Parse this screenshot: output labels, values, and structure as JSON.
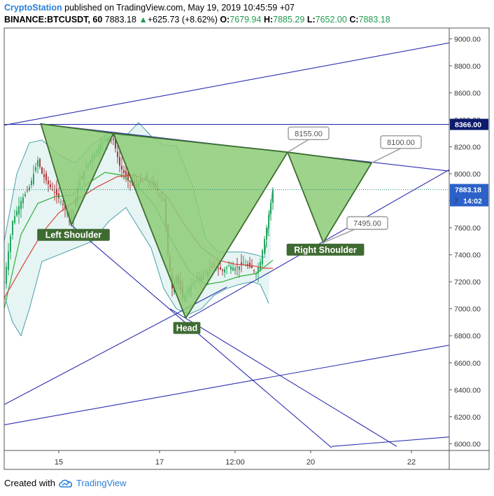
{
  "header": {
    "author": "CryptoStation",
    "published_text": "published on TradingView.com, May 19, 2019 10:45:59 +07",
    "symbol": "BINANCE:BTCUSDT, 60",
    "last": "7883.18",
    "change_arrow": "▲",
    "change": "+625.73 (+8.62%)",
    "o_label": "O:",
    "o_value": "7679.94",
    "h_label": "H:",
    "h_value": "7885.29",
    "l_label": "L:",
    "l_value": "7652.00",
    "c_label": "C:",
    "c_value": "7883.18"
  },
  "footer": {
    "created_with": "Created with",
    "brand": "TradingView",
    "logo_icon": "tradingview-cloud-icon"
  },
  "colors": {
    "pattern_fill": "#8dcb77",
    "pattern_stroke": "#3d6e2f",
    "trendline": "#2b2fb0",
    "bb_fill": "#e6f4f4",
    "bb_stroke": "#4aa0a8",
    "sma_red": "#d9443a",
    "sma_green": "#31b032",
    "candle_up": "#27a65f",
    "candle_down": "#b0393c",
    "author": "#2a7fd6",
    "last_price_badge": "#2b61c9",
    "resistance_badge": "#0d1b6e"
  },
  "chart_data": {
    "type": "candlestick",
    "title": "BINANCE:BTCUSDT, 60",
    "ylim": [
      5950,
      9080
    ],
    "y_ticks": [
      "6000.00",
      "6200.00",
      "6400.00",
      "6600.00",
      "6800.00",
      "7000.00",
      "7200.00",
      "7400.00",
      "7600.00",
      "7800.00",
      "8000.00",
      "8200.00",
      "8400.00",
      "8600.00",
      "8800.00",
      "9000.00"
    ],
    "x_tick_labels": [
      {
        "label": "15",
        "hour": 24
      },
      {
        "label": "17",
        "hour": 72
      },
      {
        "label": "12:00",
        "hour": 108
      },
      {
        "label": "20",
        "hour": 144
      },
      {
        "label": "22",
        "hour": 192
      }
    ],
    "x_range_hours": [
      -2,
      210
    ],
    "price_badges": {
      "resistance": "8366.00",
      "last_price": "7883.18",
      "countdown": "14:02"
    },
    "price_axis_partial_label": "7",
    "pattern": {
      "name": "inverse head and shoulders",
      "points": [
        {
          "hour": 15.5,
          "price": 8370
        },
        {
          "hour": 30,
          "price": 7620
        },
        {
          "hour": 50,
          "price": 8300
        },
        {
          "hour": 84.5,
          "price": 6930
        },
        {
          "hour": 133,
          "price": 8160
        },
        {
          "hour": 150,
          "price": 7490
        },
        {
          "hour": 173,
          "price": 8080
        }
      ],
      "labels": [
        {
          "text": "Left Shoulder",
          "hour": 31,
          "price": 7545
        },
        {
          "text": "Head",
          "hour": 85,
          "price": 6855
        },
        {
          "text": "Right Shoulder",
          "hour": 151,
          "price": 7435
        }
      ],
      "target_callouts": [
        {
          "text": "8155.00",
          "hour": 143,
          "price": 8300
        },
        {
          "text": "8100.00",
          "hour": 187,
          "price": 8235
        },
        {
          "text": "7495.00",
          "hour": 171,
          "price": 7635
        }
      ]
    },
    "trendlines": [
      {
        "p1": [
          -2,
          8360
        ],
        "p2": [
          210,
          8970
        ]
      },
      {
        "p1": [
          -2,
          8366
        ],
        "p2": [
          210,
          8366
        ]
      },
      {
        "p1": [
          15,
          8370
        ],
        "p2": [
          210,
          8020
        ]
      },
      {
        "p1": [
          -2,
          6290
        ],
        "p2": [
          104,
          7160
        ]
      },
      {
        "p1": [
          86,
          6930
        ],
        "p2": [
          210,
          8030
        ]
      },
      {
        "p1": [
          30,
          7620
        ],
        "p2": [
          154,
          5970
        ]
      },
      {
        "p1": [
          77,
          7000
        ],
        "p2": [
          185,
          5980
        ]
      },
      {
        "p1": [
          -2,
          6140
        ],
        "p2": [
          210,
          6730
        ]
      },
      {
        "p1": [
          154,
          5980
        ],
        "p2": [
          210,
          6050
        ]
      }
    ],
    "series": [
      {
        "name": "",
        "kind": "price_path",
        "points": [
          [
            -2,
            7200
          ],
          [
            2,
            7650
          ],
          [
            6,
            7800
          ],
          [
            10,
            7900
          ],
          [
            14,
            8100
          ],
          [
            16,
            8000
          ],
          [
            20,
            7900
          ],
          [
            24,
            7820
          ],
          [
            28,
            7720
          ],
          [
            30,
            7650
          ],
          [
            33,
            7900
          ],
          [
            36,
            8020
          ],
          [
            40,
            8130
          ],
          [
            44,
            8220
          ],
          [
            48,
            8280
          ],
          [
            50,
            8250
          ],
          [
            53,
            8060
          ],
          [
            57,
            7950
          ],
          [
            61,
            7920
          ],
          [
            65,
            7960
          ],
          [
            70,
            7900
          ],
          [
            74,
            7800
          ],
          [
            76,
            7400
          ],
          [
            78,
            7150
          ],
          [
            80,
            7240
          ],
          [
            83,
            7080
          ],
          [
            86,
            7150
          ],
          [
            90,
            7220
          ],
          [
            94,
            7260
          ],
          [
            98,
            7320
          ],
          [
            102,
            7280
          ],
          [
            105,
            7320
          ],
          [
            108,
            7300
          ],
          [
            112,
            7330
          ],
          [
            116,
            7300
          ],
          [
            118,
            7260
          ],
          [
            120,
            7350
          ],
          [
            123,
            7600
          ],
          [
            126,
            7880
          ]
        ]
      },
      {
        "name": "",
        "kind": "sma_fast",
        "points": [
          [
            -2,
            7000
          ],
          [
            6,
            7550
          ],
          [
            14,
            7780
          ],
          [
            22,
            7830
          ],
          [
            30,
            7840
          ],
          [
            38,
            7930
          ],
          [
            46,
            8010
          ],
          [
            54,
            7990
          ],
          [
            62,
            7900
          ],
          [
            70,
            7760
          ],
          [
            78,
            7500
          ],
          [
            86,
            7280
          ],
          [
            94,
            7180
          ],
          [
            102,
            7200
          ],
          [
            110,
            7240
          ],
          [
            118,
            7260
          ],
          [
            126,
            7360
          ]
        ]
      },
      {
        "name": "",
        "kind": "sma_slow",
        "points": [
          [
            -2,
            7080
          ],
          [
            8,
            7350
          ],
          [
            16,
            7560
          ],
          [
            24,
            7710
          ],
          [
            32,
            7800
          ],
          [
            42,
            7900
          ],
          [
            52,
            7980
          ],
          [
            60,
            7990
          ],
          [
            68,
            7940
          ],
          [
            76,
            7820
          ],
          [
            84,
            7620
          ],
          [
            92,
            7450
          ],
          [
            100,
            7360
          ],
          [
            108,
            7330
          ],
          [
            116,
            7320
          ],
          [
            122,
            7300
          ],
          [
            126,
            7300
          ]
        ]
      },
      {
        "name": "",
        "kind": "bb_upper",
        "points": [
          [
            -2,
            7500
          ],
          [
            4,
            8000
          ],
          [
            10,
            8230
          ],
          [
            16,
            8250
          ],
          [
            24,
            8140
          ],
          [
            32,
            8080
          ],
          [
            40,
            8220
          ],
          [
            48,
            8300
          ],
          [
            56,
            8280
          ],
          [
            62,
            8380
          ],
          [
            68,
            8280
          ],
          [
            74,
            8210
          ],
          [
            80,
            8210
          ],
          [
            88,
            7900
          ],
          [
            94,
            7520
          ],
          [
            100,
            7420
          ],
          [
            106,
            7420
          ],
          [
            112,
            7420
          ],
          [
            118,
            7400
          ],
          [
            122,
            7380
          ],
          [
            126,
            7900
          ]
        ]
      },
      {
        "name": "",
        "kind": "bb_lower",
        "points": [
          [
            -2,
            7100
          ],
          [
            2,
            6900
          ],
          [
            6,
            6800
          ],
          [
            10,
            7000
          ],
          [
            16,
            7350
          ],
          [
            24,
            7400
          ],
          [
            32,
            7450
          ],
          [
            40,
            7500
          ],
          [
            48,
            7650
          ],
          [
            56,
            7750
          ],
          [
            62,
            7600
          ],
          [
            68,
            7450
          ],
          [
            74,
            7150
          ],
          [
            80,
            7000
          ],
          [
            86,
            6960
          ],
          [
            92,
            7000
          ],
          [
            98,
            7100
          ],
          [
            104,
            7150
          ],
          [
            110,
            7180
          ],
          [
            116,
            7200
          ],
          [
            120,
            7180
          ],
          [
            124,
            7040
          ]
        ]
      }
    ]
  }
}
